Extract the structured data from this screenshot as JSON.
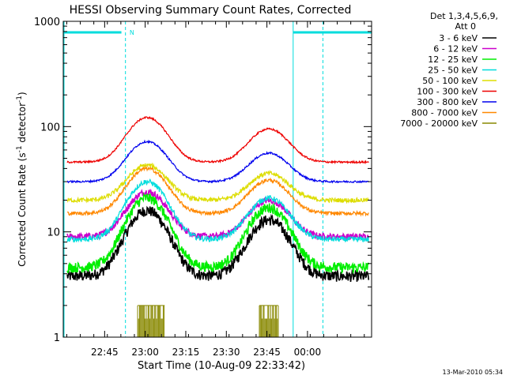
{
  "chart_data": {
    "type": "line",
    "title": "HESSI Observing Summary Count Rates, Corrected",
    "xlabel": "Start Time (10-Aug-09 22:33:42)",
    "ylabel_main": "Corrected Count Rate (s",
    "ylabel_sup1": "-1",
    "ylabel_mid": " detector",
    "ylabel_sup2": "-1",
    "ylabel_end": ")",
    "y_scale": "log",
    "ylim": [
      1,
      1000
    ],
    "xlim_minutes": [
      -4,
      110
    ],
    "x_ticks": [
      {
        "label": "22:45",
        "t": 11.3
      },
      {
        "label": "23:00",
        "t": 26.3
      },
      {
        "label": "23:15",
        "t": 41.3
      },
      {
        "label": "23:30",
        "t": 56.3
      },
      {
        "label": "23:45",
        "t": 71.3
      },
      {
        "label": "00:00",
        "t": 86.3
      }
    ],
    "y_ticks": [
      {
        "label": "1",
        "v": 1
      },
      {
        "label": "10",
        "v": 10
      },
      {
        "label": "100",
        "v": 100
      },
      {
        "label": "1000",
        "v": 1000
      }
    ],
    "legend": {
      "header1": "Det 1,3,4,5,6,9,",
      "header2": "Att 0",
      "placement": "right"
    },
    "series": [
      {
        "name": "3 - 6 keV",
        "color": "#000000",
        "base": 3.8,
        "peak1": 16,
        "peak2": 13,
        "noise": 0.12
      },
      {
        "name": "6 - 12 keV",
        "color": "#cc00cc",
        "base": 9.0,
        "peak1": 24,
        "peak2": 20,
        "noise": 0.07
      },
      {
        "name": "12 - 25 keV",
        "color": "#00ee00",
        "base": 4.6,
        "peak1": 21,
        "peak2": 17,
        "noise": 0.11
      },
      {
        "name": "25 - 50 keV",
        "color": "#00dddd",
        "base": 8.5,
        "peak1": 30,
        "peak2": 21,
        "noise": 0.06
      },
      {
        "name": "50 - 100 keV",
        "color": "#dddd00",
        "base": 20,
        "peak1": 43,
        "peak2": 36,
        "noise": 0.05
      },
      {
        "name": "100 - 300 keV",
        "color": "#ee0000",
        "base": 46,
        "peak1": 122,
        "peak2": 95,
        "noise": 0.02
      },
      {
        "name": "300 - 800 keV",
        "color": "#0000ee",
        "base": 30,
        "peak1": 72,
        "peak2": 56,
        "noise": 0.02
      },
      {
        "name": "800 - 7000 keV",
        "color": "#ff8800",
        "base": 15,
        "peak1": 40,
        "peak2": 31,
        "noise": 0.04
      },
      {
        "name": "7000 - 20000 keV",
        "color": "#888800",
        "base": 1,
        "peak1": 2,
        "peak2": 2,
        "noise": 0.0
      }
    ],
    "flag_label": "N",
    "flag_color": "#00dddd",
    "timestamp": "13-Mar-2010 05:34"
  }
}
